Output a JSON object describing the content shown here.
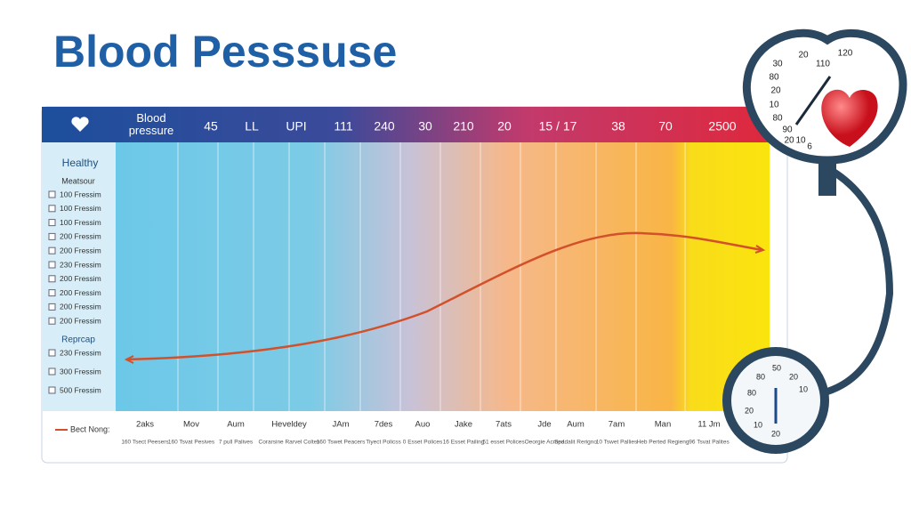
{
  "title": "Blood Pesssuse",
  "table": {
    "header_label": "Blood pressure",
    "columns": [
      "45",
      "LL",
      "UPI",
      "111",
      "240",
      "30",
      "210",
      "20",
      "15 / 17",
      "38",
      "70",
      "2500"
    ],
    "left": {
      "section1": "Healthy",
      "subtitle": "Meatsour",
      "items1": [
        "100 Fressim",
        "100 Fressim",
        "100 Fressim",
        "200 Fressim",
        "200 Fressim",
        "230 Fressim",
        "200 Fressim",
        "200 Fressim",
        "200 Fressim",
        "200 Fressim"
      ],
      "section2": "Reprcap",
      "items2": [
        "230 Fressim",
        "300 Fressim",
        "500 Fressim"
      ]
    },
    "legend": "Bect Nong:",
    "footer": [
      {
        "label": "2aks",
        "note": "160 Tsect Peesers"
      },
      {
        "label": "Mov",
        "note": "160 Tsvat Pesives"
      },
      {
        "label": "Aum",
        "note": "7 pull Palives"
      },
      {
        "label": "Heveldey",
        "note": "Corarsine Rarvel Coltes"
      },
      {
        "label": "JAm",
        "note": "160 Tswet Peacers"
      },
      {
        "label": "7des",
        "note": "Tiyect Policss"
      },
      {
        "label": "Auo",
        "note": "0 Esset Polices"
      },
      {
        "label": "Jake",
        "note": "16 Esset Pailing"
      },
      {
        "label": "7ats",
        "note": "51 esset Polices"
      },
      {
        "label": "Jde",
        "note": "Oeorgie Acmed"
      },
      {
        "label": "Aum",
        "note": "Spadalit Rerigno"
      },
      {
        "label": "7am",
        "note": "10 Tswet Pallies"
      },
      {
        "label": "Man",
        "note": "Heb Perted Regieng"
      },
      {
        "label": "11 Jm",
        "note": "96 Tsvat Palites"
      }
    ]
  },
  "gauge_top": [
    "20",
    "110",
    "120",
    "30",
    "80",
    "20",
    "10",
    "80",
    "90",
    "20",
    "10",
    "6"
  ],
  "gauge_bottom": [
    "80",
    "50",
    "20",
    "10",
    "80",
    "20",
    "10",
    "20"
  ]
}
